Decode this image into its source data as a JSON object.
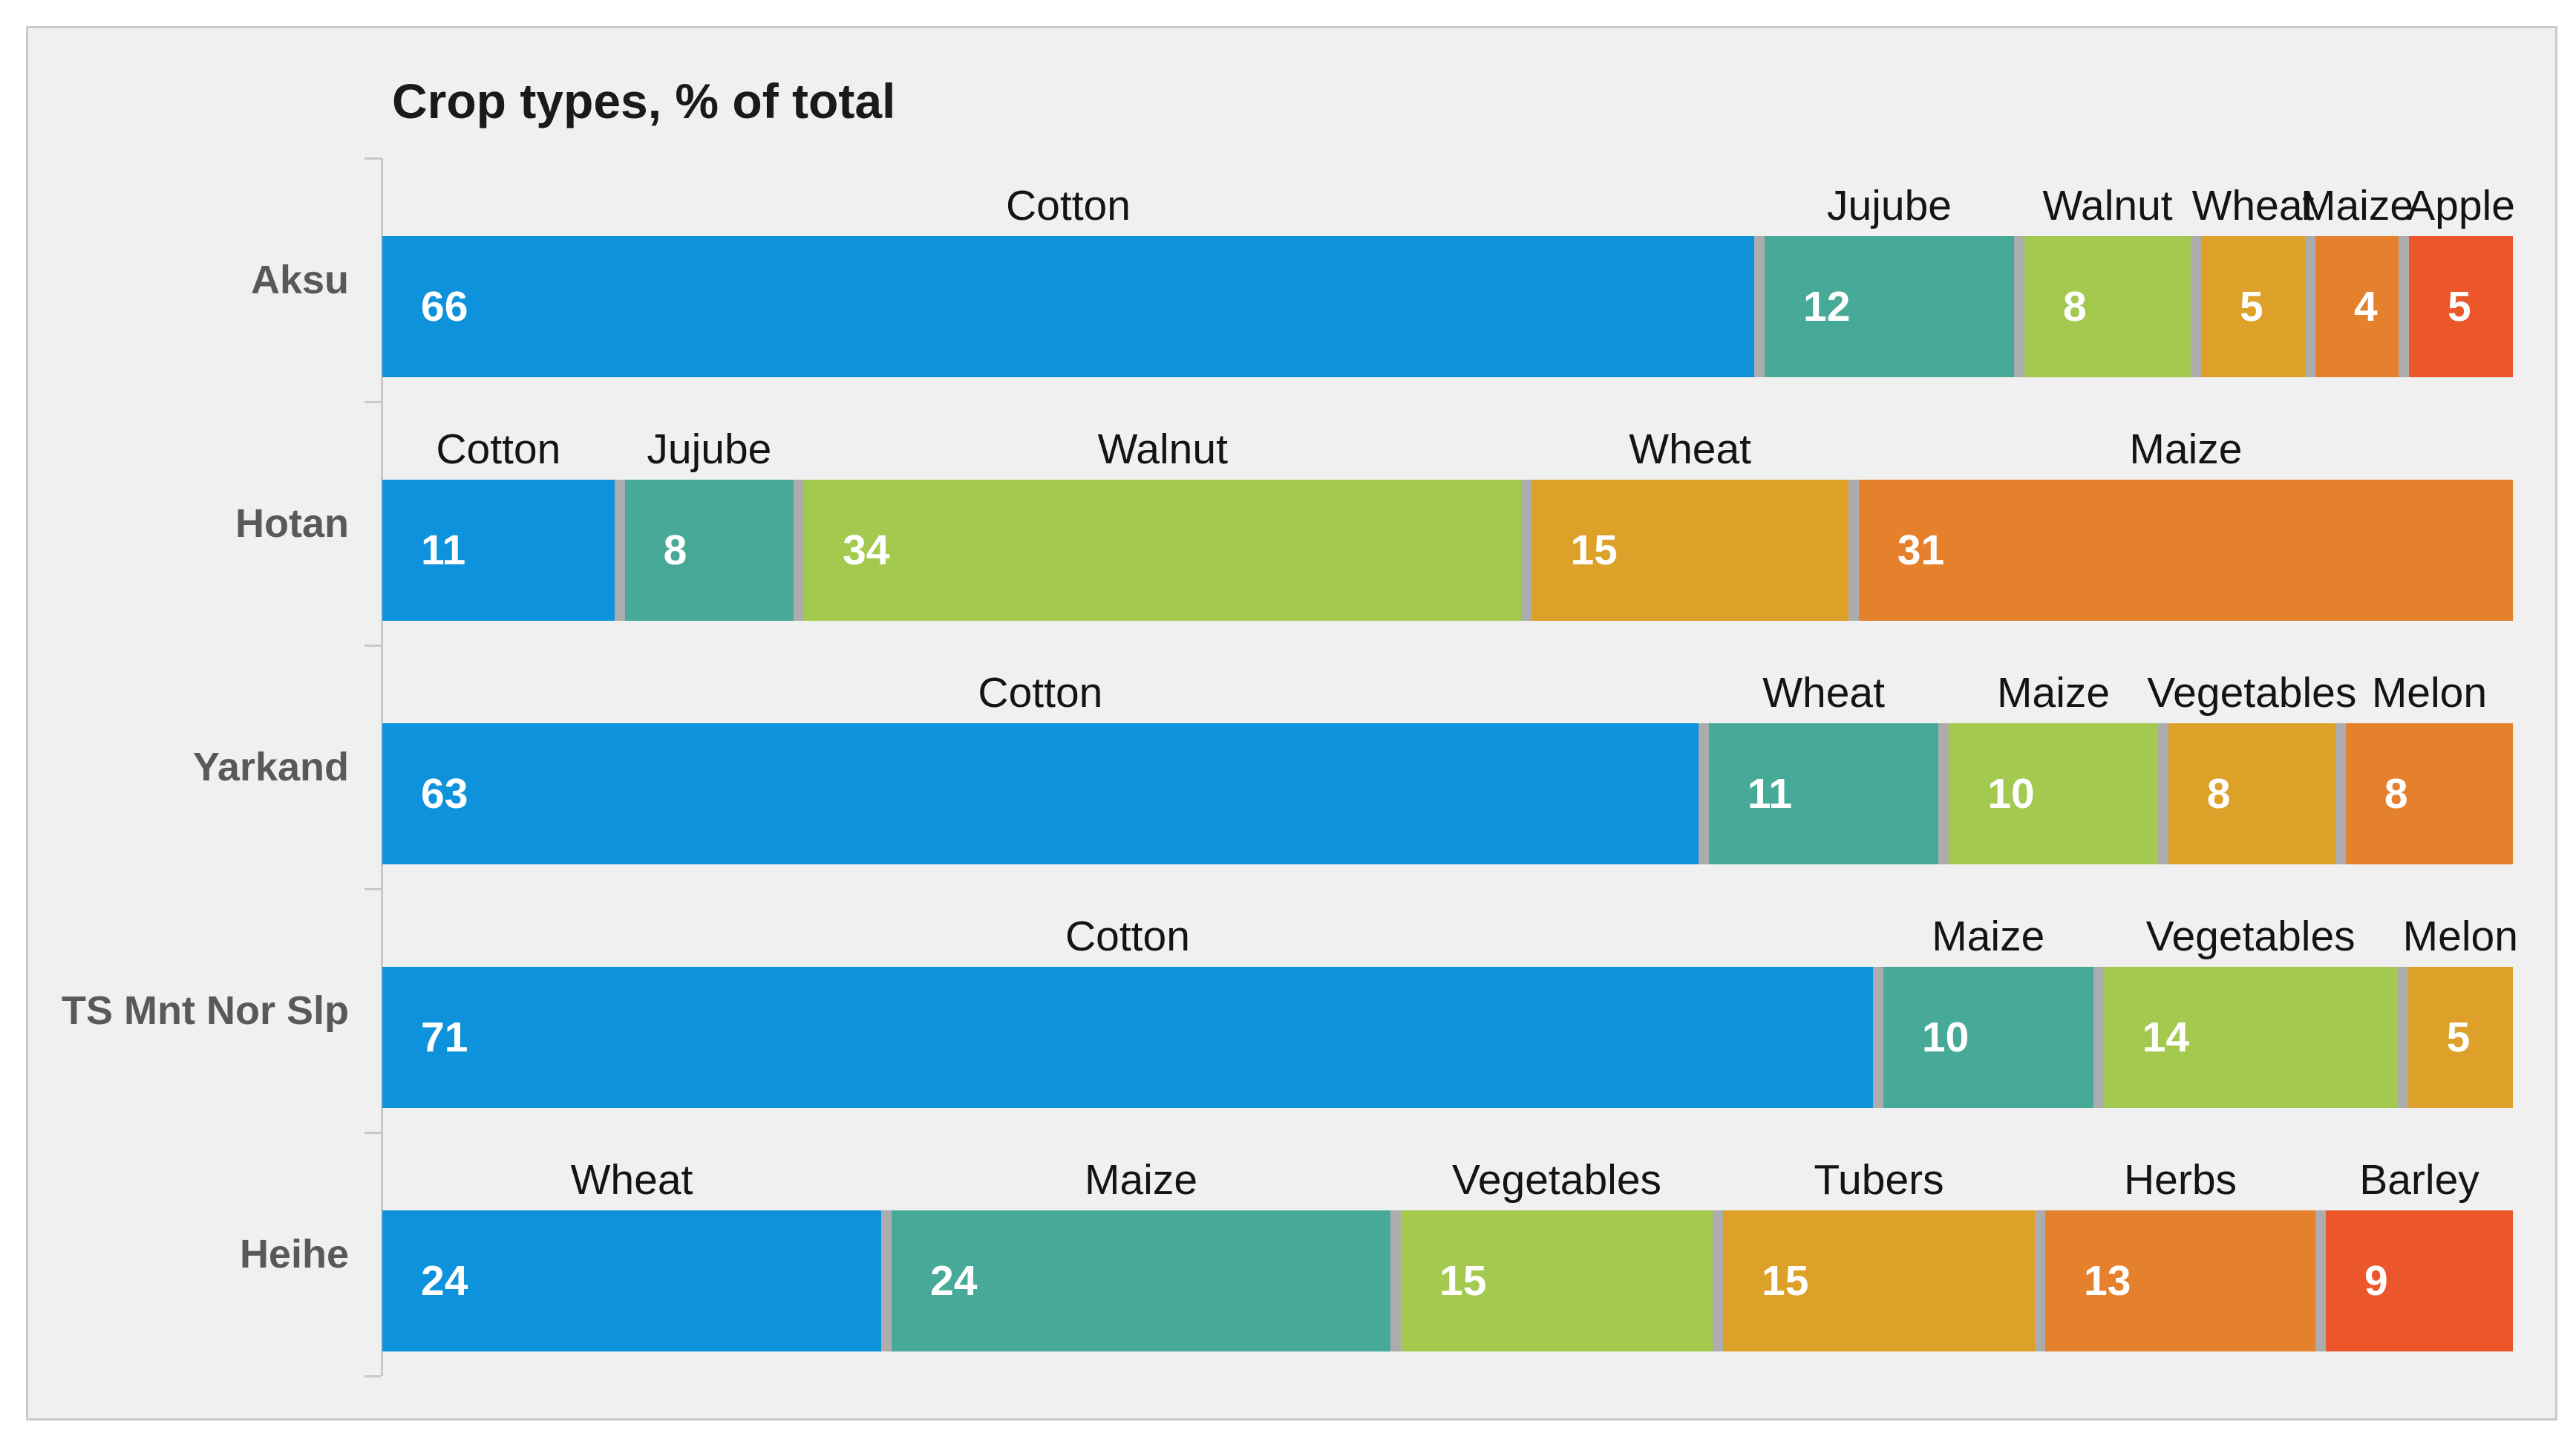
{
  "chart_data": {
    "type": "bar",
    "subtype": "stacked-horizontal-100pct",
    "title": "Crop types, % of total",
    "unit": "% of total",
    "xlim": [
      0,
      100
    ],
    "grid": false,
    "legend": "none (segment names shown above each bar)",
    "categories": [
      "Aksu",
      "Hotan",
      "Yarkand",
      "TS Mnt Nor Slp",
      "Heihe"
    ],
    "rows": [
      {
        "region": "Aksu",
        "segments": [
          {
            "crop": "Cotton",
            "value": 66
          },
          {
            "crop": "Jujube",
            "value": 12
          },
          {
            "crop": "Walnut",
            "value": 8
          },
          {
            "crop": "Wheat",
            "value": 5
          },
          {
            "crop": "Maize",
            "value": 4
          },
          {
            "crop": "Apple",
            "value": 5
          }
        ]
      },
      {
        "region": "Hotan",
        "segments": [
          {
            "crop": "Cotton",
            "value": 11
          },
          {
            "crop": "Jujube",
            "value": 8
          },
          {
            "crop": "Walnut",
            "value": 34
          },
          {
            "crop": "Wheat",
            "value": 15
          },
          {
            "crop": "Maize",
            "value": 31
          }
        ]
      },
      {
        "region": "Yarkand",
        "segments": [
          {
            "crop": "Cotton",
            "value": 63
          },
          {
            "crop": "Wheat",
            "value": 11
          },
          {
            "crop": "Maize",
            "value": 10
          },
          {
            "crop": "Vegetables",
            "value": 8
          },
          {
            "crop": "Melon",
            "value": 8
          }
        ]
      },
      {
        "region": "TS Mnt Nor Slp",
        "segments": [
          {
            "crop": "Cotton",
            "value": 71
          },
          {
            "crop": "Maize",
            "value": 10
          },
          {
            "crop": "Vegetables",
            "value": 14
          },
          {
            "crop": "Melon",
            "value": 5
          }
        ]
      },
      {
        "region": "Heihe",
        "segments": [
          {
            "crop": "Wheat",
            "value": 24
          },
          {
            "crop": "Maize",
            "value": 24
          },
          {
            "crop": "Vegetables",
            "value": 15
          },
          {
            "crop": "Tubers",
            "value": 15
          },
          {
            "crop": "Herbs",
            "value": 13
          },
          {
            "crop": "Barley",
            "value": 9
          }
        ]
      }
    ],
    "palette": [
      "#0E92DC",
      "#47AA99",
      "#A3C94F",
      "#DDA028",
      "#E5802D",
      "#EB572B"
    ],
    "colors": {
      "page_background": "#FFFFFF",
      "chart_background": "#F0F0F0",
      "frame_border": "#CBCBCB",
      "segment_separator": "#ACACAC",
      "axis_line": "#C8C8C8",
      "category_label": "#595959",
      "segment_name_label": "#141414",
      "value_label": "#FFFFFF",
      "title": "#1A1A1A"
    }
  }
}
